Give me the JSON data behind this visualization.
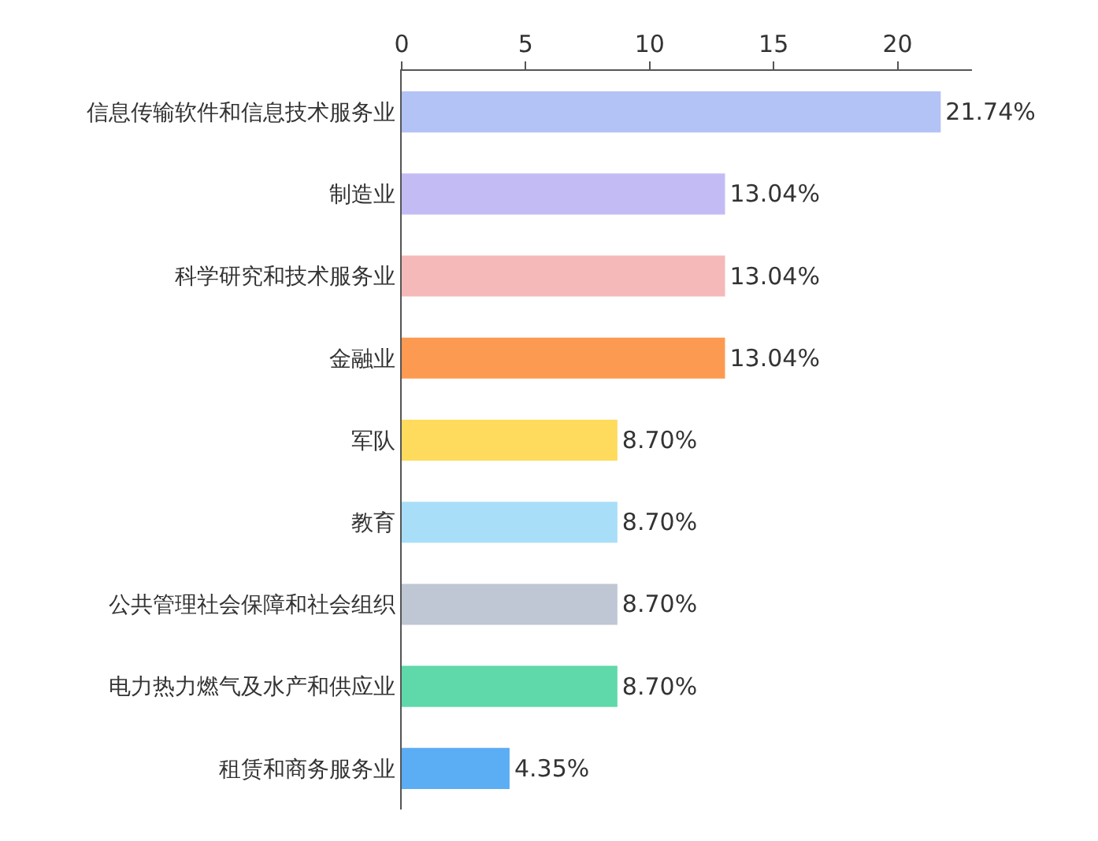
{
  "chart_data": {
    "type": "bar",
    "orientation": "horizontal",
    "categories": [
      "信息传输软件和信息技术服务业",
      "制造业",
      "科学研究和技术服务业",
      "金融业",
      "军队",
      "教育",
      "公共管理社会保障和社会组织",
      "电力热力燃气及水产和供应业",
      "租赁和商务服务业"
    ],
    "values": [
      21.74,
      13.04,
      13.04,
      13.04,
      8.7,
      8.7,
      8.7,
      8.7,
      4.35
    ],
    "value_labels": [
      "21.74%",
      "13.04%",
      "13.04%",
      "13.04%",
      "8.70%",
      "8.70%",
      "8.70%",
      "8.70%",
      "4.35%"
    ],
    "colors": [
      "#b3c3f5",
      "#c3bcf4",
      "#f5b9b9",
      "#fd9a52",
      "#fedb5c",
      "#a9def8",
      "#bfc6d4",
      "#5fd9a9",
      "#5badf4"
    ],
    "xlim": [
      0,
      23
    ],
    "xticks": [
      0,
      5,
      10,
      15,
      20
    ],
    "grid": false,
    "legend": false
  }
}
